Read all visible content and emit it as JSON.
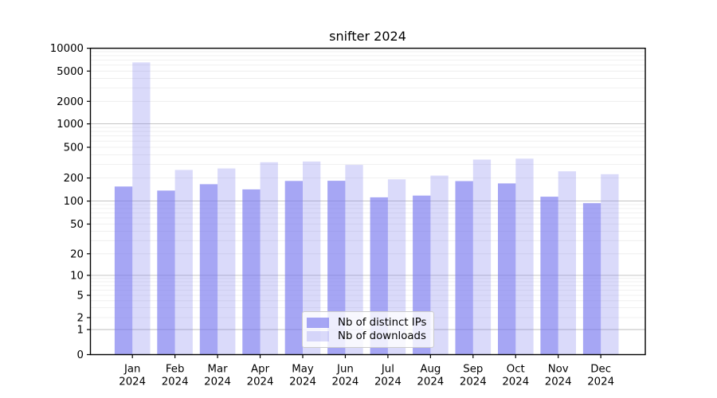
{
  "chart_data": {
    "type": "bar",
    "title": "snifter 2024",
    "categories": [
      "Jan",
      "Feb",
      "Mar",
      "Apr",
      "May",
      "Jun",
      "Jul",
      "Aug",
      "Sep",
      "Oct",
      "Nov",
      "Dec"
    ],
    "x_year": "2024",
    "series": [
      {
        "name": "Nb of distinct IPs",
        "color": "rgba(119,119,238,0.65)",
        "values": [
          155,
          137,
          166,
          142,
          183,
          184,
          112,
          118,
          182,
          170,
          114,
          94
        ]
      },
      {
        "name": "Nb of downloads",
        "color": "rgba(119,119,238,0.27)",
        "values": [
          6500,
          254,
          266,
          320,
          327,
          296,
          192,
          215,
          346,
          356,
          244,
          224
        ]
      }
    ],
    "yscale": "symlog",
    "ylim": [
      0,
      10000
    ],
    "y_ticks": [
      0,
      1,
      2,
      5,
      10,
      20,
      50,
      100,
      200,
      500,
      1000,
      2000,
      5000,
      10000
    ],
    "grid": true,
    "legend_position": "lower center",
    "colors": {
      "grid_major": "#bdbdbd",
      "grid_minor": "#ececec",
      "spine": "#000000",
      "tick_label": "#000000",
      "background": "#ffffff"
    }
  }
}
